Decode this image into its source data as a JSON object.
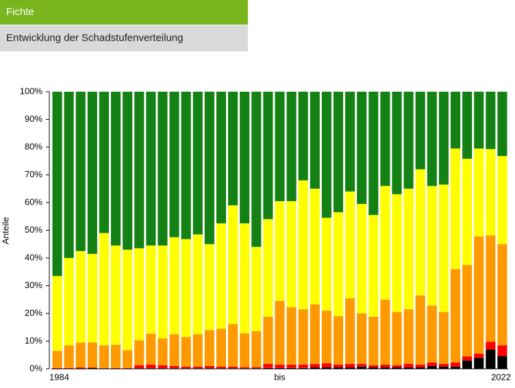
{
  "header": {
    "title": "Fichte",
    "subtitle": "Entwicklung der Schadstufenverteilung"
  },
  "chart_data": {
    "type": "stacked_bar",
    "y_label": "Anteile",
    "categories": [
      "1984",
      null,
      null,
      null,
      null,
      null,
      null,
      null,
      null,
      null,
      null,
      null,
      null,
      null,
      null,
      null,
      null,
      null,
      null,
      "bis",
      null,
      null,
      null,
      null,
      null,
      null,
      null,
      null,
      null,
      null,
      null,
      null,
      null,
      null,
      null,
      null,
      null,
      null,
      "2022"
    ],
    "ylim": [
      0,
      100
    ],
    "yticks": [
      {
        "value": 0,
        "label": "0%"
      },
      {
        "value": 10,
        "label": "10%"
      },
      {
        "value": 20,
        "label": "20%"
      },
      {
        "value": 30,
        "label": "30%"
      },
      {
        "value": 40,
        "label": "40%"
      },
      {
        "value": 50,
        "label": "50%"
      },
      {
        "value": 60,
        "label": "60%"
      },
      {
        "value": 70,
        "label": "70%"
      },
      {
        "value": 80,
        "label": "80%"
      },
      {
        "value": 90,
        "label": "90%"
      },
      {
        "value": 100,
        "label": "100%"
      }
    ],
    "series": [
      {
        "color": "#000000",
        "values": [
          0,
          0,
          0,
          0.3,
          0.2,
          0,
          0,
          0.2,
          0.2,
          0.2,
          0.2,
          0.2,
          0.2,
          0.2,
          0.2,
          0.2,
          0.2,
          0.2,
          0.3,
          0.3,
          0.3,
          0.3,
          0.5,
          0.5,
          0.5,
          0.5,
          0.8,
          0.5,
          0.5,
          0.5,
          0.5,
          0.5,
          1,
          0.8,
          0.8,
          3,
          4,
          7,
          4.6
        ]
      },
      {
        "color": "#ff0000",
        "values": [
          0.3,
          0.3,
          0.5,
          0.2,
          0.1,
          0.3,
          0.3,
          1.1,
          1.3,
          1.1,
          0.8,
          0.6,
          0.6,
          0.8,
          0.6,
          0.6,
          0.4,
          0.4,
          1.5,
          1.2,
          1.2,
          1.2,
          1.3,
          1.5,
          1,
          1.3,
          1,
          0.8,
          1,
          0.8,
          1.3,
          1,
          1.3,
          1,
          1.5,
          1.5,
          1.5,
          2.8,
          3.9
        ]
      },
      {
        "color": "#ff9900",
        "values": [
          6.2,
          8.2,
          9,
          9,
          8.2,
          8.4,
          6.4,
          9,
          11.2,
          9.7,
          11.5,
          10.7,
          11.7,
          13,
          13.7,
          15.4,
          12.2,
          13,
          17,
          23,
          20.8,
          20,
          21.5,
          19,
          17.5,
          23.7,
          18.2,
          17.5,
          23.5,
          19.2,
          19.7,
          25,
          20.5,
          18.7,
          33.7,
          33,
          42.3,
          38.4,
          36.5
        ]
      },
      {
        "color": "#ffff00",
        "values": [
          27,
          31.5,
          33,
          32,
          40.5,
          35.8,
          36.3,
          33.2,
          31.8,
          33.5,
          35,
          35.3,
          36,
          31,
          38,
          42.8,
          39.7,
          30.4,
          35.2,
          36,
          38.2,
          46.5,
          41.7,
          33.5,
          37.5,
          38.5,
          39.5,
          36.7,
          41,
          42.5,
          43.5,
          45.5,
          43.2,
          46,
          43.5,
          38.3,
          31.7,
          31.1,
          31.8
        ]
      },
      {
        "color": "#138113",
        "values": [
          66.5,
          60,
          57.5,
          58.5,
          51,
          55.5,
          57,
          56.5,
          55.5,
          55.5,
          52.5,
          53.2,
          51.5,
          55,
          47.5,
          41,
          47.5,
          56,
          46,
          39.5,
          39.5,
          32,
          35,
          45.5,
          43.5,
          36,
          40.5,
          44.5,
          34,
          37,
          35,
          28,
          34,
          33.5,
          20.5,
          24.2,
          20.5,
          20.7,
          23.2
        ]
      }
    ]
  }
}
